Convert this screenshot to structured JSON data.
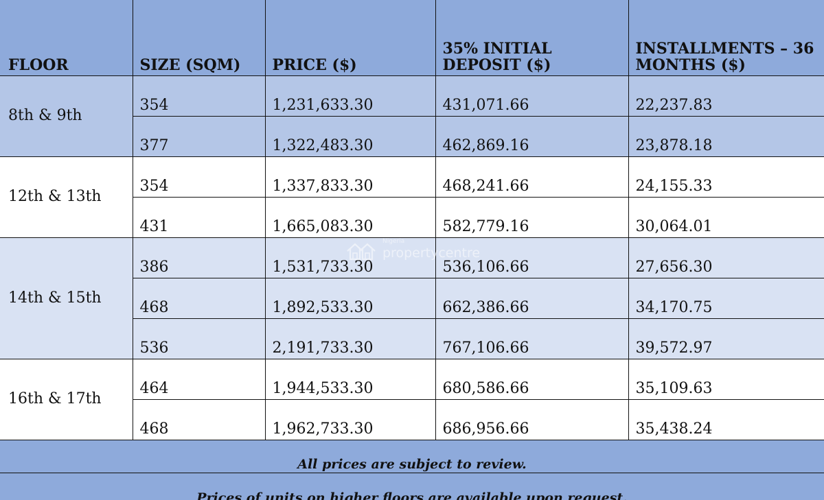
{
  "headers": {
    "floor": "FLOOR",
    "size": "SIZE (SQM)",
    "price": "PRICE ($)",
    "deposit": "35% INITIAL DEPOSIT ($)",
    "installments": "INSTALLMENTS – 36 MONTHS ($)"
  },
  "groups": [
    {
      "floor": "8th & 9th",
      "rows": [
        {
          "size": "354",
          "price": "1,231,633.30",
          "deposit": "431,071.66",
          "installments": "22,237.83"
        },
        {
          "size": "377",
          "price": "1,322,483.30",
          "deposit": "462,869.16",
          "installments": "23,878.18"
        }
      ]
    },
    {
      "floor": "12th & 13th",
      "rows": [
        {
          "size": "354",
          "price": "1,337,833.30",
          "deposit": "468,241.66",
          "installments": "24,155.33"
        },
        {
          "size": "431",
          "price": "1,665,083.30",
          "deposit": "582,779.16",
          "installments": "30,064.01"
        }
      ]
    },
    {
      "floor": "14th & 15th",
      "rows": [
        {
          "size": "386",
          "price": "1,531,733.30",
          "deposit": "536,106.66",
          "installments": "27,656.30"
        },
        {
          "size": "468",
          "price": "1,892,533.30",
          "deposit": "662,386.66",
          "installments": "34,170.75"
        },
        {
          "size": "536",
          "price": "2,191,733.30",
          "deposit": "767,106.66",
          "installments": "39,572.97"
        }
      ]
    },
    {
      "floor": "16th & 17th",
      "rows": [
        {
          "size": "464",
          "price": "1,944,533.30",
          "deposit": "680,586.66",
          "installments": "35,109.63"
        },
        {
          "size": "468",
          "price": "1,962,733.30",
          "deposit": "686,956.66",
          "installments": "35,438.24"
        }
      ]
    }
  ],
  "notes": {
    "review": "All prices are subject to review.",
    "higher_floors": "Prices of units on higher floors are available upon request."
  },
  "watermark": {
    "small": "Nigeria",
    "big": "propertycentre"
  },
  "colors": {
    "header_blue": "#8eaadb",
    "band_blue": "#b4c6e7",
    "band_light": "#d9e2f3",
    "band_white": "#ffffff"
  }
}
